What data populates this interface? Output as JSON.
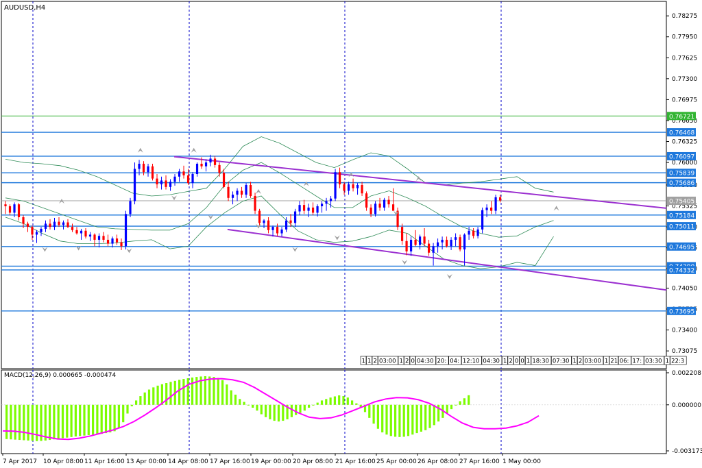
{
  "window": {
    "symbol_label": "AUDUSD,H4",
    "macd_label": "MACD(12,26,9) 0.000665 -0.000474"
  },
  "colors": {
    "background": "#ffffff",
    "frame": "#000000",
    "grid_vertical": "#0000c8",
    "level_line": "#1e78dc",
    "level_box": "#1e78dc",
    "current_price": "#a0a0a0",
    "current_box": "#a0a0a0",
    "green_line": "#3cb43c",
    "green_box": "#32b432",
    "bull_candle": "#0000ff",
    "bear_candle": "#ff0000",
    "bollinger": "#2e8b57",
    "channel": "#9b30d0",
    "fractal": "#a0a0a0",
    "macd_histogram": "#7cfc00",
    "macd_signal": "#ff00ff",
    "axis_text": "#000000"
  },
  "chart_data": [
    {
      "type": "candlestick",
      "title": "AUDUSD,H4",
      "ylim": [
        0.728,
        0.785
      ],
      "y_ticks": [
        "0.78275",
        "0.77950",
        "0.77625",
        "0.77300",
        "0.76975",
        "0.76650",
        "0.76325",
        "0.76000",
        "0.75650",
        "0.75325",
        "0.75000",
        "0.74675",
        "0.74350",
        "0.74050",
        "0.73725",
        "0.73400",
        "0.73075"
      ],
      "x_ticks": [
        "7 Apr 2017",
        "10 Apr 08:00",
        "11 Apr 16:00",
        "13 Apr 00:00",
        "14 Apr 08:00",
        "17 Apr 16:00",
        "19 Apr 00:00",
        "20 Apr 08:00",
        "21 Apr 16:00",
        "25 Apr 00:00",
        "26 Apr 08:00",
        "27 Apr 16:00",
        "1 May 00:00"
      ],
      "session_separators": [
        "10 Apr",
        "13 Apr",
        "17 Apr",
        "21 Apr",
        "1 May"
      ],
      "horizontal_levels": [
        {
          "price": 0.76721,
          "label": "0.76721",
          "style": "green"
        },
        {
          "price": 0.76468,
          "label": "0.76468",
          "style": "level"
        },
        {
          "price": 0.76097,
          "label": "0.76097",
          "style": "level"
        },
        {
          "price": 0.75839,
          "label": "0.75839",
          "style": "level"
        },
        {
          "price": 0.75686,
          "label": "0.75686",
          "style": "level"
        },
        {
          "price": 0.75405,
          "label": "0.75405",
          "style": "current"
        },
        {
          "price": 0.75184,
          "label": "0.75184",
          "style": "level"
        },
        {
          "price": 0.75011,
          "label": "0.75011",
          "style": "level"
        },
        {
          "price": 0.74695,
          "label": "0.74695",
          "style": "level"
        },
        {
          "price": 0.7439,
          "label": "0.74390",
          "style": "level"
        },
        {
          "price": 0.74332,
          "label": "0.74332",
          "style": "level"
        },
        {
          "price": 0.73695,
          "label": "0.73695",
          "style": "level"
        }
      ],
      "channel_lines": [
        {
          "from": [
            60,
            0.7609
          ],
          "to": [
            190,
            0.7529
          ]
        },
        {
          "from": [
            79,
            0.7496
          ],
          "to": [
            190,
            0.7402
          ]
        }
      ],
      "candles_ohlc": [
        [
          0.7535,
          0.754,
          0.752,
          0.7532
        ],
        [
          0.7532,
          0.7535,
          0.7518,
          0.7522
        ],
        [
          0.7522,
          0.7538,
          0.7515,
          0.7535
        ],
        [
          0.7535,
          0.7537,
          0.751,
          0.7515
        ],
        [
          0.7515,
          0.7518,
          0.7498,
          0.7505
        ],
        [
          0.7505,
          0.7508,
          0.7492,
          0.75
        ],
        [
          0.75,
          0.7502,
          0.748,
          0.7488
        ],
        [
          0.7488,
          0.7495,
          0.7475,
          0.7492
        ],
        [
          0.7492,
          0.75,
          0.7486,
          0.7497
        ],
        [
          0.7497,
          0.751,
          0.7492,
          0.7505
        ],
        [
          0.7505,
          0.7512,
          0.7496,
          0.75
        ],
        [
          0.75,
          0.7514,
          0.7495,
          0.7508
        ],
        [
          0.7508,
          0.7515,
          0.75,
          0.7503
        ],
        [
          0.7503,
          0.751,
          0.7496,
          0.7507
        ],
        [
          0.7507,
          0.7512,
          0.7498,
          0.75
        ],
        [
          0.75,
          0.7505,
          0.7492,
          0.7495
        ],
        [
          0.7495,
          0.75,
          0.7488,
          0.749
        ],
        [
          0.749,
          0.7497,
          0.748,
          0.7494
        ],
        [
          0.7494,
          0.7498,
          0.7482,
          0.7485
        ],
        [
          0.7485,
          0.7492,
          0.7478,
          0.7488
        ],
        [
          0.7488,
          0.749,
          0.747,
          0.748
        ],
        [
          0.748,
          0.749,
          0.7468,
          0.7486
        ],
        [
          0.7486,
          0.7492,
          0.7476,
          0.748
        ],
        [
          0.748,
          0.7488,
          0.747,
          0.7474
        ],
        [
          0.7474,
          0.7485,
          0.7468,
          0.7482
        ],
        [
          0.7482,
          0.7488,
          0.7472,
          0.7476
        ],
        [
          0.7476,
          0.7482,
          0.7464,
          0.747
        ],
        [
          0.747,
          0.7525,
          0.7465,
          0.752
        ],
        [
          0.752,
          0.7545,
          0.7515,
          0.754
        ],
        [
          0.754,
          0.76,
          0.7535,
          0.759
        ],
        [
          0.759,
          0.7604,
          0.758,
          0.7598
        ],
        [
          0.7598,
          0.7602,
          0.758,
          0.7585
        ],
        [
          0.7585,
          0.7598,
          0.7578,
          0.7594
        ],
        [
          0.7594,
          0.7598,
          0.7572,
          0.7575
        ],
        [
          0.7575,
          0.7582,
          0.756,
          0.7566
        ],
        [
          0.7566,
          0.7578,
          0.7558,
          0.7572
        ],
        [
          0.7572,
          0.758,
          0.7558,
          0.7562
        ],
        [
          0.7562,
          0.7574,
          0.7556,
          0.757
        ],
        [
          0.757,
          0.7582,
          0.7564,
          0.7578
        ],
        [
          0.7578,
          0.759,
          0.757,
          0.7586
        ],
        [
          0.7586,
          0.7595,
          0.7575,
          0.758
        ],
        [
          0.758,
          0.759,
          0.7565,
          0.7568
        ],
        [
          0.7568,
          0.7585,
          0.756,
          0.7582
        ],
        [
          0.7582,
          0.76,
          0.7578,
          0.7598
        ],
        [
          0.7598,
          0.7608,
          0.759,
          0.7594
        ],
        [
          0.7594,
          0.7605,
          0.7586,
          0.76
        ],
        [
          0.76,
          0.7612,
          0.7594,
          0.7606
        ],
        [
          0.7606,
          0.761,
          0.7592,
          0.7596
        ],
        [
          0.7596,
          0.76,
          0.7578,
          0.7584
        ],
        [
          0.7584,
          0.759,
          0.756,
          0.7562
        ],
        [
          0.7562,
          0.757,
          0.754,
          0.7545
        ],
        [
          0.7545,
          0.7555,
          0.7535,
          0.755
        ],
        [
          0.755,
          0.756,
          0.754,
          0.7556
        ],
        [
          0.7556,
          0.7562,
          0.7545,
          0.755
        ],
        [
          0.755,
          0.7568,
          0.7545,
          0.7565
        ],
        [
          0.7565,
          0.757,
          0.7545,
          0.7548
        ],
        [
          0.7548,
          0.7553,
          0.752,
          0.7525
        ],
        [
          0.7525,
          0.7528,
          0.7502,
          0.7506
        ],
        [
          0.7506,
          0.7512,
          0.7498,
          0.751
        ],
        [
          0.751,
          0.7515,
          0.749,
          0.7495
        ],
        [
          0.7495,
          0.7502,
          0.7485,
          0.75
        ],
        [
          0.75,
          0.7505,
          0.7486,
          0.749
        ],
        [
          0.749,
          0.75,
          0.7485,
          0.7496
        ],
        [
          0.7496,
          0.7515,
          0.7492,
          0.751
        ],
        [
          0.751,
          0.752,
          0.75,
          0.7506
        ],
        [
          0.7506,
          0.7528,
          0.75,
          0.7524
        ],
        [
          0.7524,
          0.754,
          0.7518,
          0.7534
        ],
        [
          0.7534,
          0.7542,
          0.752,
          0.7525
        ],
        [
          0.7525,
          0.7536,
          0.7515,
          0.753
        ],
        [
          0.753,
          0.7538,
          0.7518,
          0.7522
        ],
        [
          0.7522,
          0.7535,
          0.7516,
          0.7532
        ],
        [
          0.7532,
          0.754,
          0.7522,
          0.7536
        ],
        [
          0.7536,
          0.7545,
          0.7525,
          0.754
        ],
        [
          0.754,
          0.7548,
          0.753,
          0.7544
        ],
        [
          0.7544,
          0.759,
          0.754,
          0.7585
        ],
        [
          0.7585,
          0.7592,
          0.756,
          0.7566
        ],
        [
          0.7566,
          0.757,
          0.755,
          0.7556
        ],
        [
          0.7556,
          0.757,
          0.755,
          0.7566
        ],
        [
          0.7566,
          0.7575,
          0.7555,
          0.756
        ],
        [
          0.756,
          0.7568,
          0.755,
          0.7565
        ],
        [
          0.7565,
          0.757,
          0.7548,
          0.7552
        ],
        [
          0.7552,
          0.7555,
          0.7525,
          0.753
        ],
        [
          0.753,
          0.7535,
          0.7515,
          0.752
        ],
        [
          0.752,
          0.754,
          0.7516,
          0.7536
        ],
        [
          0.7536,
          0.7545,
          0.7525,
          0.753
        ],
        [
          0.753,
          0.7545,
          0.7525,
          0.7542
        ],
        [
          0.7542,
          0.7548,
          0.753,
          0.7535
        ],
        [
          0.7535,
          0.756,
          0.753,
          0.7525
        ],
        [
          0.7525,
          0.753,
          0.7495,
          0.75
        ],
        [
          0.75,
          0.7505,
          0.7472,
          0.7478
        ],
        [
          0.7478,
          0.749,
          0.7456,
          0.7462
        ],
        [
          0.7462,
          0.7485,
          0.7455,
          0.748
        ],
        [
          0.748,
          0.7495,
          0.747,
          0.7472
        ],
        [
          0.7472,
          0.7488,
          0.7465,
          0.7485
        ],
        [
          0.7485,
          0.7498,
          0.747,
          0.7474
        ],
        [
          0.7474,
          0.748,
          0.7455,
          0.746
        ],
        [
          0.746,
          0.7475,
          0.744,
          0.747
        ],
        [
          0.747,
          0.7482,
          0.746,
          0.7476
        ],
        [
          0.7476,
          0.7485,
          0.7465,
          0.748
        ],
        [
          0.748,
          0.7485,
          0.7468,
          0.747
        ],
        [
          0.747,
          0.7484,
          0.7464,
          0.748
        ],
        [
          0.748,
          0.749,
          0.747,
          0.7484
        ],
        [
          0.7484,
          0.7488,
          0.7462,
          0.7465
        ],
        [
          0.7465,
          0.749,
          0.744,
          0.7488
        ],
        [
          0.7488,
          0.75,
          0.748,
          0.7494
        ],
        [
          0.7494,
          0.7498,
          0.7482,
          0.7486
        ],
        [
          0.7486,
          0.75,
          0.7482,
          0.7496
        ],
        [
          0.7496,
          0.753,
          0.749,
          0.7526
        ],
        [
          0.7526,
          0.7535,
          0.7515,
          0.753
        ],
        [
          0.753,
          0.754,
          0.752,
          0.7525
        ],
        [
          0.7525,
          0.755,
          0.752,
          0.7546
        ],
        [
          0.7546,
          0.755,
          0.7538,
          0.7541
        ]
      ],
      "bollinger": {
        "upper": [
          0.7605,
          0.76,
          0.7598,
          0.7595,
          0.7588,
          0.7578,
          0.7565,
          0.7552,
          0.7548,
          0.755,
          0.7555,
          0.756,
          0.759,
          0.7625,
          0.764,
          0.763,
          0.7615,
          0.76,
          0.7592,
          0.7604,
          0.7615,
          0.761,
          0.759,
          0.7568,
          0.7565,
          0.7568,
          0.757,
          0.7574,
          0.7578,
          0.756,
          0.7554
        ],
        "middle": [
          0.7545,
          0.754,
          0.753,
          0.752,
          0.751,
          0.75,
          0.7497,
          0.7496,
          0.7495,
          0.7495,
          0.7505,
          0.753,
          0.7565,
          0.7588,
          0.76,
          0.7584,
          0.7566,
          0.7548,
          0.753,
          0.753,
          0.7548,
          0.7556,
          0.7545,
          0.7532,
          0.7515,
          0.75,
          0.749,
          0.7484,
          0.7486,
          0.75,
          0.751
        ],
        "lower": [
          0.7515,
          0.7505,
          0.749,
          0.7478,
          0.7474,
          0.7474,
          0.7475,
          0.7478,
          0.748,
          0.7466,
          0.747,
          0.75,
          0.7522,
          0.754,
          0.7548,
          0.752,
          0.7494,
          0.748,
          0.7476,
          0.7478,
          0.7485,
          0.7495,
          0.749,
          0.747,
          0.745,
          0.744,
          0.7435,
          0.7438,
          0.7445,
          0.744,
          0.7485
        ]
      },
      "fractals_up": [
        [
          20,
          0.7533
        ],
        [
          48,
          0.7612
        ],
        [
          67,
          0.7612
        ],
        [
          90,
          0.7548
        ],
        [
          107,
          0.756
        ],
        [
          123,
          0.7574
        ],
        [
          147,
          0.7568
        ],
        [
          196,
          0.7522
        ]
      ],
      "fractals_down": [
        [
          14,
          0.7472
        ],
        [
          26,
          0.7474
        ],
        [
          44,
          0.747
        ],
        [
          60,
          0.7552
        ],
        [
          73,
          0.7522
        ],
        [
          90,
          0.7508
        ],
        [
          103,
          0.7472
        ],
        [
          118,
          0.749
        ],
        [
          139,
          0.7528
        ],
        [
          142,
          0.7452
        ],
        [
          158,
          0.743
        ]
      ],
      "time_strip": [
        "1",
        "1",
        "2",
        "03:00",
        "1",
        "2",
        "0",
        "04:30",
        "20:",
        "04:",
        "12:10",
        "04:30",
        "1",
        "2",
        "0",
        "0",
        "1",
        "18:30",
        "07:30",
        "1",
        "2",
        "03:00",
        "1",
        "21",
        "06:",
        "17:",
        "03:30",
        "1",
        "22:3"
      ]
    },
    {
      "type": "bar",
      "title": "MACD(12,26,9) 0.000665 -0.000474",
      "ylim": [
        -0.003173,
        0.002208
      ],
      "y_ticks": [
        "0.002208",
        "0.000000",
        "-0.003173"
      ],
      "histogram": [
        -0.00236,
        -0.00238,
        -0.0024,
        -0.00242,
        -0.00244,
        -0.00246,
        -0.00248,
        -0.0025,
        -0.00249,
        -0.00246,
        -0.00242,
        -0.00238,
        -0.00234,
        -0.0023,
        -0.00226,
        -0.00222,
        -0.00218,
        -0.00215,
        -0.00212,
        -0.00209,
        -0.00206,
        -0.00203,
        -0.002,
        -0.00195,
        -0.0019,
        -0.00182,
        -0.0016,
        -0.0012,
        -0.0006,
        -0.0001,
        0.0003,
        0.0006,
        0.00085,
        0.00105,
        0.0012,
        0.00132,
        0.00142,
        0.0015,
        0.00158,
        0.00165,
        0.00172,
        0.00178,
        0.00183,
        0.00188,
        0.00192,
        0.00195,
        0.00197,
        0.00195,
        0.00192,
        0.00185,
        0.0017,
        0.0014,
        0.001,
        0.0007,
        0.0004,
        0.0002,
        0.0,
        -0.0002,
        -0.0004,
        -0.00065,
        -0.00085,
        -0.001,
        -0.0011,
        -0.00115,
        -0.0011,
        -0.001,
        -0.00085,
        -0.0007,
        -0.00055,
        -0.0004,
        -0.0002,
        0.0,
        0.00015,
        0.0003,
        0.0004,
        0.0005,
        0.00058,
        0.00065,
        0.0006,
        0.0005,
        0.0003,
        0.0001,
        -0.0002,
        -0.0005,
        -0.0009,
        -0.0013,
        -0.00165,
        -0.0019,
        -0.00205,
        -0.00215,
        -0.0022,
        -0.00222,
        -0.0022,
        -0.00215,
        -0.00205,
        -0.00195,
        -0.00185,
        -0.00175,
        -0.0016,
        -0.0014,
        -0.00115,
        -0.0009,
        -0.0006,
        -0.0003,
        0.0,
        0.00025,
        0.00045,
        0.00066
      ],
      "signal": [
        -0.0018,
        -0.00182,
        -0.0019,
        -0.00205,
        -0.00222,
        -0.00235,
        -0.00238,
        -0.0023,
        -0.00215,
        -0.00195,
        -0.00175,
        -0.0015,
        -0.00115,
        -0.0007,
        -0.0002,
        0.00035,
        0.00095,
        0.0014,
        0.00165,
        0.00178,
        0.0018,
        0.00172,
        0.00155,
        0.0012,
        0.00075,
        0.0003,
        -0.00015,
        -0.00055,
        -0.00085,
        -0.00095,
        -0.0009,
        -0.0007,
        -0.0004,
        -0.0001,
        0.0002,
        0.0004,
        0.0005,
        0.00048,
        0.00035,
        0.0001,
        -0.0003,
        -0.0008,
        -0.00125,
        -0.00155,
        -0.00165,
        -0.00165,
        -0.0016,
        -0.00145,
        -0.0012,
        -0.00075
      ],
      "xlim_bars": [
        0,
        195
      ]
    }
  ]
}
